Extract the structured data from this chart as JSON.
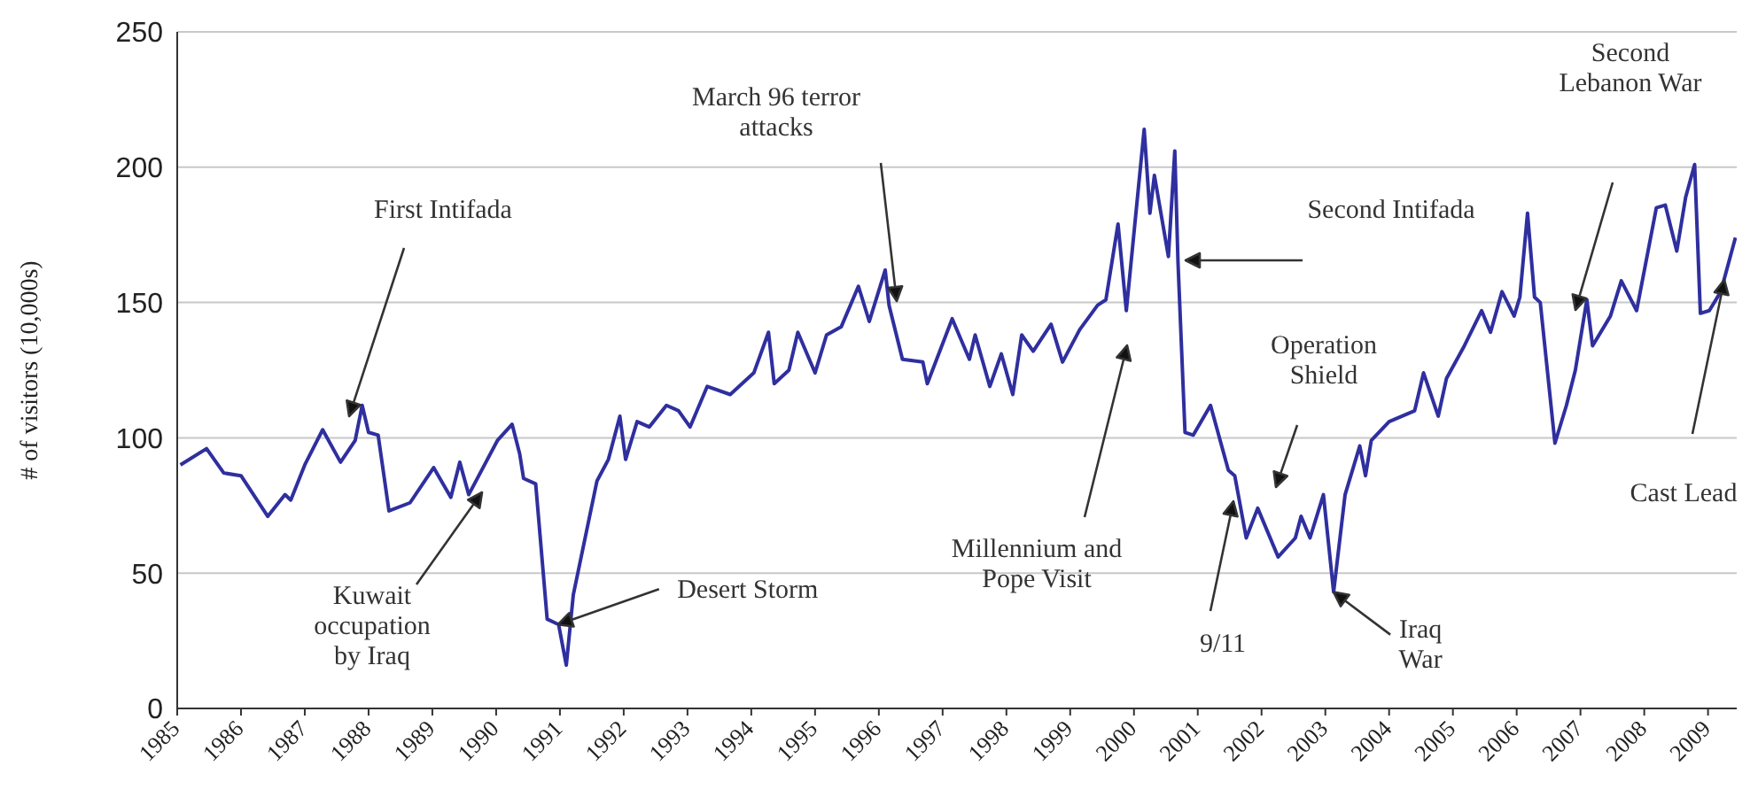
{
  "chart_data": {
    "type": "line",
    "ylabel": "# of visitors (10,000s)",
    "xlim": [
      1985,
      2009.45
    ],
    "xticks": [
      1985,
      1986,
      1987,
      1988,
      1989,
      1990,
      1991,
      1992,
      1993,
      1994,
      1995,
      1996,
      1997,
      1998,
      1999,
      2000,
      2001,
      2002,
      2003,
      2004,
      2005,
      2006,
      2007,
      2008,
      2009
    ],
    "ylim": [
      0,
      250
    ],
    "yticks": [
      0,
      50,
      100,
      150,
      200,
      250
    ],
    "grid": "y",
    "line_style": "solid",
    "marker": "none",
    "series": [
      {
        "color": "#2f2f9f",
        "x": [
          1985.05,
          1985.46,
          1985.73,
          1986.0,
          1986.42,
          1986.69,
          1986.78,
          1987.0,
          1987.28,
          1987.56,
          1987.79,
          1987.9,
          1988.0,
          1988.15,
          1988.32,
          1988.65,
          1989.02,
          1989.29,
          1989.43,
          1989.57,
          1990.02,
          1990.25,
          1990.37,
          1990.43,
          1990.62,
          1990.8,
          1990.98,
          1991.1,
          1991.21,
          1991.58,
          1991.76,
          1991.94,
          1992.03,
          1992.21,
          1992.4,
          1992.67,
          1992.86,
          1993.04,
          1993.31,
          1993.67,
          1994.04,
          1994.27,
          1994.36,
          1994.59,
          1994.73,
          1995.0,
          1995.18,
          1995.41,
          1995.68,
          1995.85,
          1996.1,
          1996.16,
          1996.37,
          1996.69,
          1996.76,
          1997.15,
          1997.42,
          1997.51,
          1997.74,
          1997.92,
          1998.1,
          1998.24,
          1998.42,
          1998.7,
          1998.88,
          1999.15,
          1999.43,
          1999.56,
          1999.75,
          1999.88,
          2000.16,
          2000.25,
          2000.32,
          2000.54,
          2000.64,
          2000.69,
          2000.8,
          2000.93,
          2001.2,
          2001.48,
          2001.58,
          2001.76,
          2001.94,
          2002.26,
          2002.53,
          2002.62,
          2002.76,
          2002.97,
          2003.13,
          2003.31,
          2003.54,
          2003.63,
          2003.72,
          2004.0,
          2004.4,
          2004.54,
          2004.77,
          2004.9,
          2005.18,
          2005.45,
          2005.59,
          2005.77,
          2005.96,
          2006.05,
          2006.17,
          2006.28,
          2006.37,
          2006.6,
          2006.78,
          2006.92,
          2007.1,
          2007.19,
          2007.47,
          2007.64,
          2007.88,
          2008.19,
          2008.33,
          2008.51,
          2008.65,
          2008.79,
          2008.88,
          2009.02,
          2009.2,
          2009.43
        ],
        "values": [
          90,
          96,
          87,
          86,
          71,
          79,
          77,
          90,
          103,
          91,
          99,
          112,
          102,
          101,
          73,
          76,
          89,
          78,
          91,
          79,
          99,
          105,
          94,
          85,
          83,
          33,
          31,
          16,
          42,
          84,
          92,
          108,
          92,
          106,
          104,
          112,
          110,
          104,
          119,
          116,
          124,
          139,
          120,
          125,
          139,
          124,
          138,
          141,
          156,
          143,
          162,
          149,
          129,
          128,
          120,
          144,
          129,
          138,
          119,
          131,
          116,
          138,
          132,
          142,
          128,
          140,
          149,
          151,
          179,
          147,
          214,
          183,
          197,
          167,
          206,
          165,
          102,
          101,
          112,
          88,
          86,
          63,
          74,
          56,
          63,
          71,
          63,
          79,
          43,
          79,
          97,
          86,
          99,
          106,
          110,
          124,
          108,
          122,
          134,
          147,
          139,
          154,
          145,
          152,
          183,
          152,
          150,
          98,
          112,
          125,
          151,
          134,
          145,
          158,
          147,
          185,
          186,
          169,
          189,
          201,
          146,
          147,
          154,
          174
        ]
      }
    ],
    "annotations": [
      "First Intifada",
      "Kuwait\noccupation\nby Iraq",
      {
        "text": "Desert Storm",
        "x": 1990.97,
        "y": 31
      },
      "March 96 terror\nattacks",
      "Millennium and\nPope Visit",
      "Second Intifada",
      "9/11",
      "Operation\nShield",
      {
        "text": "Iraq\nWar",
        "x": 2003.13,
        "y": 43
      },
      "Second\nLebanon War",
      "Cast Lead"
    ]
  }
}
